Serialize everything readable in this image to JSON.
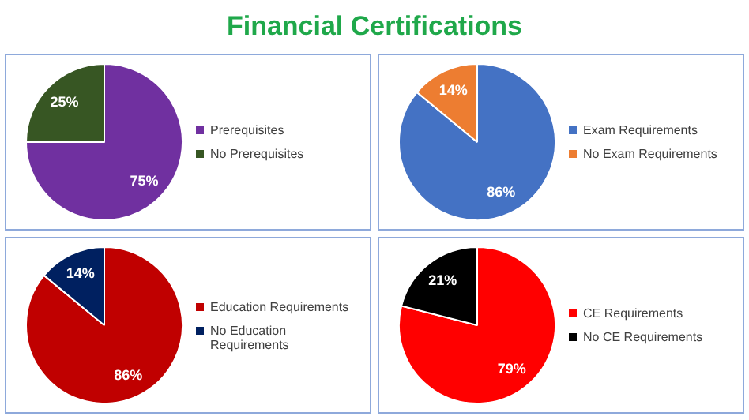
{
  "chart_data": [
    {
      "type": "other",
      "title": "Financial Certifications"
    },
    {
      "type": "pie",
      "categories": [
        "Prerequisites",
        "No Prerequisites"
      ],
      "values": [
        75,
        25
      ],
      "colors": [
        "#7030a0",
        "#375623"
      ],
      "value_labels": [
        "75%",
        "25%"
      ],
      "legend": "right"
    },
    {
      "type": "pie",
      "categories": [
        "Exam Requirements",
        "No Exam Requirements"
      ],
      "values": [
        86,
        14
      ],
      "colors": [
        "#4472c4",
        "#ed7d31"
      ],
      "value_labels": [
        "86%",
        "14%"
      ],
      "legend": "right"
    },
    {
      "type": "pie",
      "categories": [
        "Education Requirements",
        "No Education Requirements"
      ],
      "values": [
        86,
        14
      ],
      "colors": [
        "#c00000",
        "#002060"
      ],
      "value_labels": [
        "86%",
        "14%"
      ],
      "legend": "right"
    },
    {
      "type": "pie",
      "categories": [
        "CE Requirements",
        "No CE Requirements"
      ],
      "values": [
        79,
        21
      ],
      "colors": [
        "#ff0000",
        "#000000"
      ],
      "value_labels": [
        "79%",
        "21%"
      ],
      "legend": "right"
    }
  ]
}
